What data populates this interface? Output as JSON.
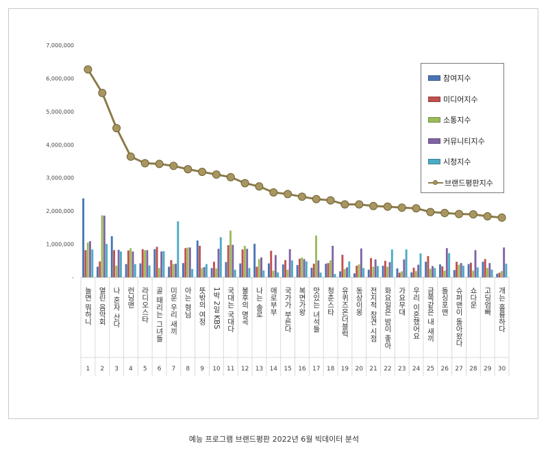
{
  "caption": "예능 프로그램 브랜드평판  2022년 6월 빅데이터 분석",
  "chart_data": {
    "type": "bar",
    "ylim": [
      0,
      7000000
    ],
    "yticks": [
      "7,000,000",
      "6,000,000",
      "5,000,000",
      "4,000,000",
      "3,000,000",
      "2,000,000",
      "1,000,000",
      "-"
    ],
    "ytick_values": [
      7000000,
      6000000,
      5000000,
      4000000,
      3000000,
      2000000,
      1000000,
      0
    ],
    "ranks": [
      "1",
      "2",
      "3",
      "4",
      "5",
      "6",
      "7",
      "8",
      "9",
      "10",
      "11",
      "12",
      "13",
      "14",
      "15",
      "16",
      "17",
      "18",
      "19",
      "20",
      "21",
      "22",
      "23",
      "24",
      "25",
      "26",
      "27",
      "28",
      "29",
      "30"
    ],
    "categories": [
      "놀면 뭐하니",
      "열린 음악회",
      "나 혼자 산다",
      "런닝맨",
      "라디오스타",
      "골 때리는 그녀들",
      "미운 우리 새끼",
      "아는 형님",
      "뜻밖의 여정",
      "1박 2일 KBS",
      "국대는 국대다",
      "불후의 명곡",
      "나는 솔로",
      "애로부부",
      "국가가 부른다",
      "복면가왕",
      "맛있는 녀석들",
      "청춘스타",
      "유퀴즈온더블럭",
      "동상이몽",
      "전지적 참견 시점",
      "화요일은 밤이 좋아",
      "가요무대",
      "우리 이혼했어요",
      "금쪽같은 내 새끼",
      "돌싱포맨",
      "슈퍼맨이 돌아왔다",
      "쇼다운",
      "고딩엄빠",
      "개는 훌륭하다"
    ],
    "legend_position": "top-right",
    "series": [
      {
        "name": "참여지수",
        "color": "#4a74b4",
        "values": [
          2380000,
          320000,
          1240000,
          400000,
          420000,
          850000,
          320000,
          430000,
          1110000,
          280000,
          460000,
          420000,
          1010000,
          420000,
          390000,
          370000,
          290000,
          410000,
          180000,
          120000,
          230000,
          350000,
          270000,
          150000,
          470000,
          390000,
          220000,
          400000,
          470000,
          110000
        ]
      },
      {
        "name": "미디어지수",
        "color": "#c0504d",
        "values": [
          820000,
          480000,
          820000,
          810000,
          850000,
          920000,
          520000,
          880000,
          950000,
          470000,
          970000,
          840000,
          320000,
          800000,
          520000,
          560000,
          410000,
          430000,
          680000,
          350000,
          580000,
          500000,
          140000,
          290000,
          640000,
          330000,
          470000,
          440000,
          550000,
          140000
        ]
      },
      {
        "name": "소통지수",
        "color": "#9bbb59",
        "values": [
          1050000,
          1870000,
          350000,
          880000,
          820000,
          280000,
          400000,
          900000,
          280000,
          270000,
          1410000,
          950000,
          550000,
          200000,
          230000,
          600000,
          1260000,
          510000,
          250000,
          390000,
          320000,
          320000,
          180000,
          190000,
          260000,
          200000,
          380000,
          200000,
          280000,
          190000
        ]
      },
      {
        "name": "커뮤니티지수",
        "color": "#8064a2",
        "values": [
          1090000,
          1860000,
          830000,
          780000,
          820000,
          780000,
          410000,
          900000,
          310000,
          860000,
          980000,
          860000,
          600000,
          670000,
          850000,
          550000,
          510000,
          950000,
          300000,
          870000,
          540000,
          460000,
          540000,
          380000,
          340000,
          880000,
          430000,
          820000,
          430000,
          900000
        ]
      },
      {
        "name": "시청지수",
        "color": "#4bacc6",
        "values": [
          840000,
          1010000,
          780000,
          400000,
          360000,
          790000,
          1690000,
          250000,
          400000,
          1210000,
          230000,
          280000,
          210000,
          150000,
          510000,
          480000,
          140000,
          100000,
          480000,
          280000,
          340000,
          840000,
          840000,
          720000,
          280000,
          730000,
          350000,
          300000,
          230000,
          410000
        ]
      },
      {
        "name": "브랜드평판지수",
        "color": "#8b7b4a",
        "values": [
          6270000,
          5560000,
          4500000,
          3640000,
          3440000,
          3420000,
          3360000,
          3260000,
          3180000,
          3100000,
          3020000,
          2840000,
          2740000,
          2560000,
          2510000,
          2430000,
          2360000,
          2320000,
          2200000,
          2200000,
          2150000,
          2130000,
          2100000,
          2080000,
          1970000,
          1940000,
          1910000,
          1900000,
          1840000,
          1800000
        ]
      }
    ]
  }
}
